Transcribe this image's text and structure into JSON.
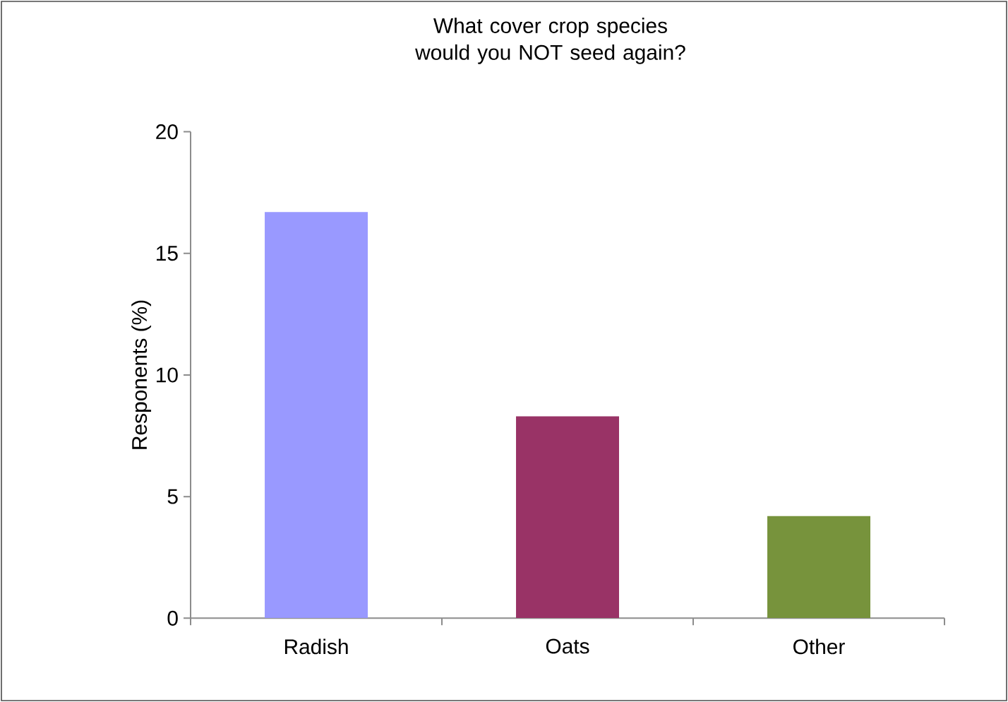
{
  "chart_data": {
    "type": "bar",
    "title": "What cover crop species would you NOT seed again?",
    "ylabel": "Responents (%)",
    "categories": [
      "Radish",
      "Oats",
      "Other"
    ],
    "values": [
      16.7,
      8.3,
      4.2
    ],
    "colors": [
      "#9999ff",
      "#993366",
      "#77933c"
    ],
    "ylim": [
      0,
      20
    ],
    "yticks": [
      0,
      5,
      10,
      15,
      20
    ],
    "grid": false
  }
}
